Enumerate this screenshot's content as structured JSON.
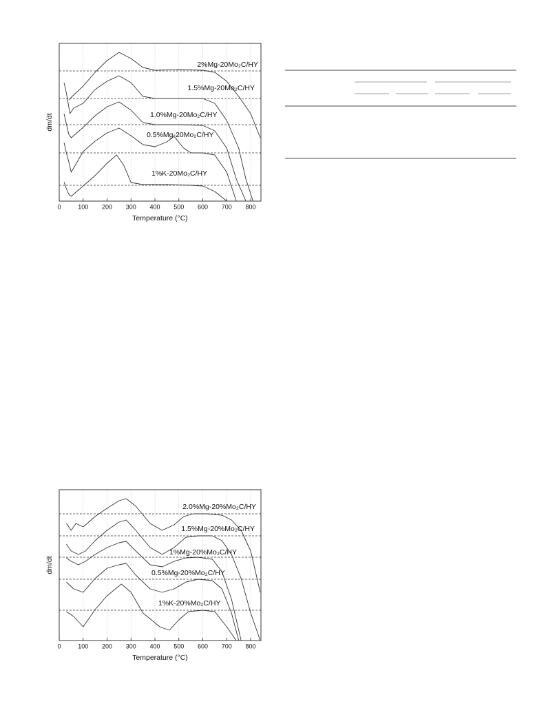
{
  "chart_data": [
    {
      "type": "line",
      "xlabel": "Temperature (°C)",
      "ylabel": "dm/dt",
      "xlim": [
        0,
        843
      ],
      "xticks": [
        0,
        100,
        200,
        300,
        400,
        500,
        600,
        700,
        800
      ],
      "ylim": [
        0,
        229
      ],
      "grid": true,
      "series": [
        {
          "name": "2%Mg-20Mo₂C/HY",
          "color": "#333333",
          "baseline": 189,
          "x": [
            40,
            60,
            100,
            150,
            200,
            250,
            300,
            350,
            400,
            500,
            600,
            650,
            700,
            750,
            800,
            840
          ],
          "values": [
            147,
            154,
            167,
            187,
            204,
            216,
            207,
            194,
            190,
            191,
            190,
            187,
            174,
            152,
            127,
            92
          ]
        },
        {
          "name": "1.5%Mg-20Mo₂C/HY",
          "color": "#333333",
          "baseline": 149,
          "x": [
            20,
            30,
            45,
            60,
            100,
            150,
            200,
            250,
            300,
            350,
            400,
            500,
            600,
            650,
            700,
            750,
            780,
            810
          ],
          "values": [
            172,
            157,
            127,
            135,
            142,
            162,
            174,
            182,
            172,
            152,
            149,
            149,
            149,
            142,
            117,
            77,
            32,
            0
          ]
        },
        {
          "name": "1.0%Mg-20Mo₂C/HY",
          "color": "#333333",
          "baseline": 111,
          "x": [
            20,
            30,
            40,
            50,
            100,
            150,
            200,
            250,
            300,
            350,
            400,
            500,
            600,
            650,
            700,
            740,
            780
          ],
          "values": [
            127,
            112,
            97,
            92,
            107,
            124,
            137,
            144,
            132,
            114,
            111,
            111,
            110,
            102,
            77,
            32,
            0
          ]
        },
        {
          "name": "0.5%Mg-20Mo₂C/HY",
          "color": "#333333",
          "baseline": 70,
          "x": [
            20,
            30,
            40,
            50,
            100,
            150,
            200,
            250,
            300,
            350,
            400,
            450,
            480,
            520,
            550,
            600,
            650,
            700,
            740
          ],
          "values": [
            85,
            70,
            57,
            42,
            72,
            87,
            99,
            106,
            95,
            82,
            79,
            86,
            94,
            77,
            70,
            70,
            67,
            42,
            0
          ]
        },
        {
          "name": "1%K-20Mo₂C/HY",
          "color": "#333333",
          "baseline": 23,
          "x": [
            20,
            30,
            40,
            50,
            100,
            150,
            200,
            240,
            270,
            300,
            350,
            450,
            550,
            600,
            650,
            700
          ],
          "values": [
            28,
            18,
            10,
            7,
            22,
            37,
            55,
            67,
            52,
            27,
            24,
            24,
            23,
            22,
            14,
            0
          ]
        }
      ]
    },
    {
      "type": "line",
      "xlabel": "Temperature (°C)",
      "ylabel": "dm/dt",
      "xlim": [
        0,
        843
      ],
      "xticks": [
        0,
        100,
        200,
        300,
        400,
        500,
        600,
        700,
        800
      ],
      "ylim": [
        0,
        219
      ],
      "grid": true,
      "series": [
        {
          "name": "2.0%Mg-20%Mo₂C/HY",
          "color": "#333333",
          "baseline": 184,
          "x": [
            30,
            50,
            70,
            100,
            150,
            200,
            250,
            280,
            320,
            380,
            430,
            480,
            520,
            560,
            620,
            680,
            720,
            760,
            800,
            840
          ],
          "values": [
            170,
            160,
            170,
            165,
            180,
            192,
            203,
            206,
            195,
            170,
            160,
            168,
            180,
            184,
            184,
            182,
            175,
            160,
            130,
            70
          ]
        },
        {
          "name": "1.5%Mg-20%Mo₂C/HY",
          "color": "#333333",
          "baseline": 152,
          "x": [
            30,
            50,
            80,
            110,
            150,
            200,
            250,
            280,
            320,
            380,
            430,
            480,
            530,
            580,
            640,
            680,
            720,
            760,
            800,
            840
          ],
          "values": [
            140,
            130,
            125,
            130,
            145,
            160,
            172,
            175,
            160,
            135,
            125,
            135,
            150,
            152,
            152,
            145,
            125,
            90,
            40,
            0
          ]
        },
        {
          "name": "1%Mg-20%Mo₂C/HY",
          "color": "#333333",
          "baseline": 121,
          "x": [
            30,
            50,
            80,
            110,
            150,
            200,
            250,
            280,
            320,
            380,
            430,
            480,
            530,
            580,
            640,
            680,
            720,
            760
          ],
          "values": [
            120,
            115,
            110,
            115,
            125,
            135,
            142,
            144,
            130,
            110,
            107,
            115,
            120,
            121,
            118,
            100,
            60,
            0
          ]
        },
        {
          "name": "0.5%Mg-20%Mo₂C/HY",
          "color": "#333333",
          "baseline": 89,
          "x": [
            30,
            60,
            100,
            150,
            200,
            250,
            280,
            320,
            380,
            430,
            480,
            530,
            580,
            640,
            680,
            720,
            750
          ],
          "values": [
            85,
            75,
            70,
            90,
            105,
            110,
            112,
            95,
            75,
            70,
            75,
            85,
            89,
            87,
            75,
            40,
            0
          ]
        },
        {
          "name": "1%K-20%Mo₂C/HY",
          "color": "#333333",
          "baseline": 44,
          "x": [
            30,
            60,
            100,
            150,
            200,
            260,
            300,
            350,
            420,
            460,
            500,
            540,
            600,
            650,
            700,
            740
          ],
          "values": [
            42,
            35,
            20,
            45,
            65,
            82,
            70,
            40,
            20,
            15,
            30,
            42,
            44,
            42,
            20,
            0
          ]
        }
      ]
    }
  ]
}
